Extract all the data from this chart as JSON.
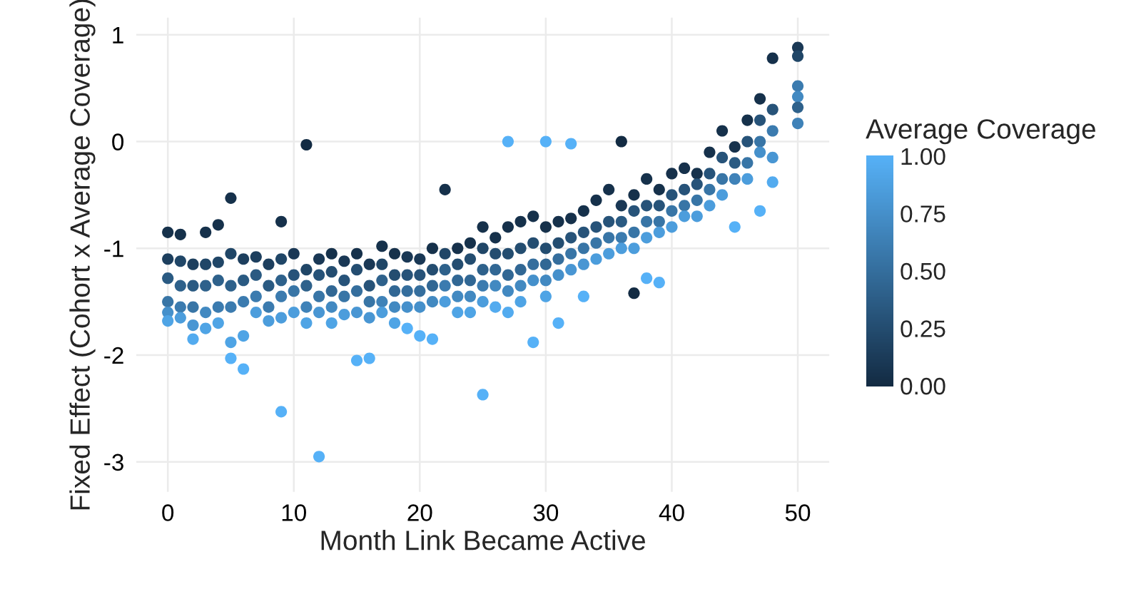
{
  "chart_data": {
    "type": "scatter",
    "xlabel": "Month Link Became Active",
    "ylabel": "Fixed Effect (Cohort x Average Coverage)",
    "clabel": "Average Coverage",
    "xlim": [
      -2.5,
      52.5
    ],
    "ylim": [
      -3.28,
      1.16
    ],
    "xticks": [
      0,
      10,
      20,
      30,
      40,
      50
    ],
    "yticks": [
      -3,
      -2,
      -1,
      0,
      1
    ],
    "grid": true,
    "clim": [
      0,
      1
    ],
    "cticks": [
      {
        "value": 0,
        "label": "0.00"
      },
      {
        "value": 0.25,
        "label": "0.25"
      },
      {
        "value": 0.5,
        "label": "0.50"
      },
      {
        "value": 0.75,
        "label": "0.75"
      },
      {
        "value": 1,
        "label": "1.00"
      }
    ],
    "x": [
      0,
      0,
      0,
      0,
      0,
      0,
      1,
      1,
      1,
      1,
      1,
      2,
      2,
      2,
      2,
      2,
      3,
      3,
      3,
      3,
      3,
      4,
      4,
      4,
      4,
      4,
      5,
      5,
      5,
      5,
      5,
      5,
      6,
      6,
      6,
      6,
      6,
      7,
      7,
      7,
      7,
      8,
      8,
      8,
      8,
      9,
      9,
      9,
      9,
      9,
      9,
      10,
      10,
      10,
      10,
      11,
      11,
      11,
      11,
      11,
      12,
      12,
      12,
      12,
      12,
      13,
      13,
      13,
      13,
      13,
      14,
      14,
      14,
      14,
      15,
      15,
      15,
      15,
      15,
      16,
      16,
      16,
      16,
      16,
      17,
      17,
      17,
      17,
      17,
      18,
      18,
      18,
      18,
      18,
      19,
      19,
      19,
      19,
      19,
      20,
      20,
      20,
      20,
      20,
      21,
      21,
      21,
      21,
      21,
      22,
      22,
      22,
      22,
      22,
      23,
      23,
      23,
      23,
      23,
      24,
      24,
      24,
      24,
      24,
      25,
      25,
      25,
      25,
      25,
      25,
      26,
      26,
      26,
      26,
      26,
      27,
      27,
      27,
      27,
      27,
      27,
      28,
      28,
      28,
      28,
      28,
      29,
      29,
      29,
      29,
      29,
      30,
      30,
      30,
      30,
      30,
      30,
      31,
      31,
      31,
      31,
      31,
      32,
      32,
      32,
      32,
      32,
      33,
      33,
      33,
      33,
      33,
      34,
      34,
      34,
      34,
      35,
      35,
      35,
      35,
      36,
      36,
      36,
      36,
      36,
      37,
      37,
      37,
      37,
      37,
      38,
      38,
      38,
      38,
      38,
      39,
      39,
      39,
      39,
      39,
      40,
      40,
      40,
      40,
      41,
      41,
      41,
      41,
      42,
      42,
      42,
      42,
      43,
      43,
      43,
      43,
      44,
      44,
      44,
      44,
      45,
      45,
      45,
      45,
      46,
      46,
      46,
      46,
      47,
      47,
      47,
      47,
      47,
      48,
      48,
      48,
      48,
      48,
      50,
      50,
      50,
      50,
      50,
      50
    ],
    "values": [
      -0.85,
      -1.1,
      -1.28,
      -1.5,
      -1.6,
      -1.68,
      -0.87,
      -1.12,
      -1.35,
      -1.55,
      -1.65,
      -1.15,
      -1.35,
      -1.55,
      -1.72,
      -1.85,
      -0.85,
      -1.15,
      -1.35,
      -1.6,
      -1.75,
      -0.78,
      -1.13,
      -1.3,
      -1.55,
      -1.7,
      -0.53,
      -1.05,
      -1.35,
      -1.55,
      -1.88,
      -2.03,
      -1.1,
      -1.3,
      -1.5,
      -1.82,
      -2.13,
      -1.08,
      -1.25,
      -1.45,
      -1.6,
      -1.15,
      -1.35,
      -1.55,
      -1.68,
      -0.75,
      -1.1,
      -1.3,
      -1.45,
      -1.65,
      -2.53,
      -1.05,
      -1.25,
      -1.4,
      -1.6,
      -0.03,
      -1.2,
      -1.35,
      -1.55,
      -1.7,
      -1.1,
      -1.25,
      -1.45,
      -1.6,
      -2.95,
      -1.05,
      -1.22,
      -1.4,
      -1.55,
      -1.7,
      -1.12,
      -1.3,
      -1.45,
      -1.62,
      -1.05,
      -1.2,
      -1.4,
      -1.6,
      -2.05,
      -1.15,
      -1.35,
      -1.5,
      -1.65,
      -2.03,
      -0.98,
      -1.15,
      -1.3,
      -1.5,
      -1.6,
      -1.05,
      -1.25,
      -1.4,
      -1.55,
      -1.7,
      -1.08,
      -1.25,
      -1.4,
      -1.55,
      -1.75,
      -1.1,
      -1.25,
      -1.4,
      -1.55,
      -1.82,
      -1.0,
      -1.2,
      -1.35,
      -1.5,
      -1.85,
      -0.45,
      -1.05,
      -1.2,
      -1.35,
      -1.5,
      -1.0,
      -1.15,
      -1.3,
      -1.45,
      -1.6,
      -0.95,
      -1.1,
      -1.3,
      -1.45,
      -1.6,
      -0.8,
      -1.0,
      -1.2,
      -1.35,
      -1.5,
      -2.37,
      -0.9,
      -1.05,
      -1.2,
      -1.35,
      -1.55,
      0.0,
      -0.8,
      -1.05,
      -1.25,
      -1.4,
      -1.6,
      -0.75,
      -1.0,
      -1.2,
      -1.35,
      -1.5,
      -0.7,
      -0.95,
      -1.15,
      -1.3,
      -1.88,
      0.0,
      -0.8,
      -1.0,
      -1.15,
      -1.3,
      -1.45,
      -0.75,
      -0.95,
      -1.1,
      -1.25,
      -1.7,
      -0.02,
      -0.72,
      -0.9,
      -1.05,
      -1.2,
      -0.65,
      -0.85,
      -1.0,
      -1.15,
      -1.45,
      -0.55,
      -0.8,
      -0.95,
      -1.1,
      -0.45,
      -0.75,
      -0.9,
      -1.05,
      0.0,
      -0.6,
      -0.75,
      -0.9,
      -1.0,
      -0.5,
      -0.65,
      -0.85,
      -1.0,
      -1.42,
      -0.35,
      -0.6,
      -0.75,
      -0.9,
      -1.28,
      -0.45,
      -0.6,
      -0.75,
      -0.85,
      -1.32,
      -0.3,
      -0.5,
      -0.65,
      -0.8,
      -0.25,
      -0.45,
      -0.6,
      -0.7,
      -0.3,
      -0.4,
      -0.55,
      -0.7,
      -0.1,
      -0.3,
      -0.45,
      -0.6,
      0.1,
      -0.15,
      -0.35,
      -0.5,
      -0.05,
      -0.2,
      -0.35,
      -0.8,
      0.2,
      0.0,
      -0.2,
      -0.35,
      0.4,
      0.2,
      0.0,
      -0.1,
      -0.65,
      0.78,
      0.3,
      0.1,
      -0.15,
      -0.38,
      0.88,
      0.8,
      0.52,
      0.42,
      0.32,
      0.17
    ],
    "cvalues": [
      0.05,
      0.15,
      0.35,
      0.55,
      0.75,
      0.9,
      0.05,
      0.2,
      0.4,
      0.6,
      0.85,
      0.15,
      0.35,
      0.55,
      0.8,
      0.95,
      0.05,
      0.2,
      0.4,
      0.7,
      0.9,
      0.05,
      0.2,
      0.4,
      0.6,
      0.9,
      0.05,
      0.2,
      0.4,
      0.6,
      0.9,
      1.0,
      0.15,
      0.35,
      0.6,
      0.9,
      1.0,
      0.15,
      0.35,
      0.6,
      0.85,
      0.15,
      0.35,
      0.6,
      0.85,
      0.05,
      0.2,
      0.4,
      0.6,
      0.85,
      1.0,
      0.1,
      0.3,
      0.55,
      0.85,
      0.0,
      0.2,
      0.4,
      0.65,
      0.9,
      0.1,
      0.3,
      0.55,
      0.8,
      1.0,
      0.05,
      0.25,
      0.45,
      0.7,
      0.9,
      0.1,
      0.3,
      0.55,
      0.85,
      0.05,
      0.25,
      0.5,
      0.8,
      1.0,
      0.1,
      0.3,
      0.55,
      0.8,
      1.0,
      0.05,
      0.2,
      0.4,
      0.65,
      0.85,
      0.05,
      0.25,
      0.45,
      0.7,
      0.9,
      0.1,
      0.3,
      0.5,
      0.75,
      1.0,
      0.1,
      0.3,
      0.5,
      0.75,
      1.0,
      0.05,
      0.25,
      0.45,
      0.7,
      1.0,
      0.05,
      0.2,
      0.4,
      0.6,
      0.85,
      0.05,
      0.25,
      0.45,
      0.7,
      0.9,
      0.05,
      0.25,
      0.45,
      0.7,
      0.9,
      0.05,
      0.2,
      0.4,
      0.6,
      0.85,
      1.0,
      0.05,
      0.25,
      0.45,
      0.7,
      0.95,
      1.0,
      0.05,
      0.25,
      0.45,
      0.7,
      0.95,
      0.05,
      0.25,
      0.45,
      0.7,
      0.9,
      0.05,
      0.25,
      0.5,
      0.75,
      1.0,
      1.0,
      0.05,
      0.25,
      0.45,
      0.7,
      0.9,
      0.05,
      0.25,
      0.5,
      0.75,
      1.0,
      1.0,
      0.05,
      0.3,
      0.55,
      0.8,
      0.05,
      0.3,
      0.55,
      0.8,
      1.0,
      0.05,
      0.3,
      0.55,
      0.85,
      0.05,
      0.3,
      0.55,
      0.85,
      0.0,
      0.1,
      0.35,
      0.6,
      0.85,
      0.05,
      0.3,
      0.55,
      0.85,
      0.0,
      0.05,
      0.3,
      0.55,
      0.85,
      1.0,
      0.05,
      0.3,
      0.55,
      0.85,
      1.0,
      0.05,
      0.3,
      0.55,
      0.85,
      0.05,
      0.3,
      0.55,
      0.85,
      0.05,
      0.3,
      0.55,
      0.85,
      0.05,
      0.3,
      0.55,
      0.85,
      0.05,
      0.3,
      0.55,
      0.85,
      0.05,
      0.35,
      0.65,
      1.0,
      0.05,
      0.3,
      0.55,
      0.85,
      0.05,
      0.3,
      0.55,
      0.75,
      1.0,
      0.05,
      0.3,
      0.6,
      0.8,
      0.95,
      0.1,
      0.2,
      0.6,
      0.7,
      0.4,
      0.65
    ]
  }
}
